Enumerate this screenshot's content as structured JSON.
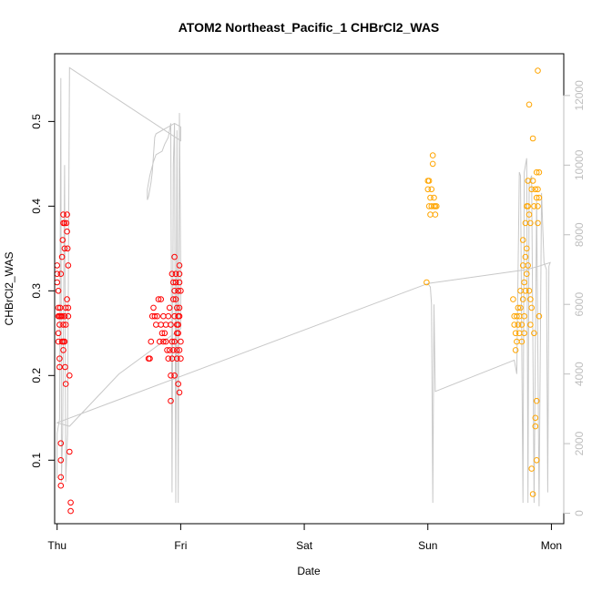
{
  "chart_data": {
    "type": "scatter",
    "title": "ATOM2 Northeast_Pacific_1 CHBrCl2_WAS",
    "xlabel": "Date",
    "ylabel": "CHBrCl2_WAS",
    "x_ticks": [
      "Thu",
      "Fri",
      "Sat",
      "Sun",
      "Mon"
    ],
    "x_range": [
      -0.02,
      4.1
    ],
    "ylim": [
      0.025,
      0.58
    ],
    "y_ticks": [
      0.1,
      0.2,
      0.3,
      0.4,
      0.5
    ],
    "y2_ticks": [
      0,
      2000,
      4000,
      6000,
      8000,
      10000,
      12000
    ],
    "y2_range": [
      -300,
      13200
    ],
    "grid": false,
    "legend": "none",
    "colors": {
      "red_series": "#ff0000",
      "orange_series": "#ffa500",
      "altitude_line": "#c8c8c8",
      "right_axis": "#bebebe"
    },
    "series": [
      {
        "color": "red",
        "points": [
          [
            0.0,
            0.33
          ],
          [
            0.0,
            0.32
          ],
          [
            0.0,
            0.31
          ],
          [
            0.01,
            0.3
          ],
          [
            0.01,
            0.28
          ],
          [
            0.01,
            0.27
          ],
          [
            0.01,
            0.25
          ],
          [
            0.01,
            0.24
          ],
          [
            0.02,
            0.22
          ],
          [
            0.02,
            0.21
          ],
          [
            0.02,
            0.27
          ],
          [
            0.02,
            0.26
          ],
          [
            0.025,
            0.28
          ],
          [
            0.03,
            0.12
          ],
          [
            0.03,
            0.1
          ],
          [
            0.03,
            0.08
          ],
          [
            0.03,
            0.07
          ],
          [
            0.03,
            0.27
          ],
          [
            0.03,
            0.32
          ],
          [
            0.04,
            0.24
          ],
          [
            0.04,
            0.27
          ],
          [
            0.04,
            0.34
          ],
          [
            0.045,
            0.36
          ],
          [
            0.05,
            0.38
          ],
          [
            0.05,
            0.39
          ],
          [
            0.05,
            0.24
          ],
          [
            0.05,
            0.23
          ],
          [
            0.05,
            0.26
          ],
          [
            0.06,
            0.38
          ],
          [
            0.06,
            0.35
          ],
          [
            0.06,
            0.27
          ],
          [
            0.06,
            0.24
          ],
          [
            0.065,
            0.21
          ],
          [
            0.07,
            0.26
          ],
          [
            0.07,
            0.19
          ],
          [
            0.07,
            0.28
          ],
          [
            0.075,
            0.38
          ],
          [
            0.08,
            0.39
          ],
          [
            0.08,
            0.29
          ],
          [
            0.08,
            0.37
          ],
          [
            0.085,
            0.35
          ],
          [
            0.09,
            0.33
          ],
          [
            0.09,
            0.28
          ],
          [
            0.09,
            0.27
          ],
          [
            0.1,
            0.2
          ],
          [
            0.1,
            0.11
          ],
          [
            0.11,
            0.05
          ],
          [
            0.11,
            0.04
          ],
          [
            0.74,
            0.22
          ],
          [
            0.75,
            0.22
          ],
          [
            0.76,
            0.24
          ],
          [
            0.77,
            0.27
          ],
          [
            0.78,
            0.28
          ],
          [
            0.79,
            0.27
          ],
          [
            0.8,
            0.26
          ],
          [
            0.81,
            0.27
          ],
          [
            0.82,
            0.29
          ],
          [
            0.83,
            0.24
          ],
          [
            0.84,
            0.29
          ],
          [
            0.84,
            0.26
          ],
          [
            0.85,
            0.25
          ],
          [
            0.86,
            0.27
          ],
          [
            0.86,
            0.24
          ],
          [
            0.87,
            0.25
          ],
          [
            0.88,
            0.26
          ],
          [
            0.88,
            0.24
          ],
          [
            0.89,
            0.23
          ],
          [
            0.9,
            0.27
          ],
          [
            0.9,
            0.22
          ],
          [
            0.91,
            0.28
          ],
          [
            0.91,
            0.23
          ],
          [
            0.92,
            0.26
          ],
          [
            0.92,
            0.17
          ],
          [
            0.92,
            0.2
          ],
          [
            0.93,
            0.32
          ],
          [
            0.93,
            0.24
          ],
          [
            0.93,
            0.22
          ],
          [
            0.94,
            0.31
          ],
          [
            0.94,
            0.29
          ],
          [
            0.94,
            0.23
          ],
          [
            0.95,
            0.34
          ],
          [
            0.95,
            0.3
          ],
          [
            0.95,
            0.27
          ],
          [
            0.95,
            0.24
          ],
          [
            0.95,
            0.2
          ],
          [
            0.96,
            0.32
          ],
          [
            0.96,
            0.31
          ],
          [
            0.96,
            0.29
          ],
          [
            0.97,
            0.28
          ],
          [
            0.97,
            0.26
          ],
          [
            0.97,
            0.25
          ],
          [
            0.97,
            0.23
          ],
          [
            0.97,
            0.22
          ],
          [
            0.98,
            0.3
          ],
          [
            0.98,
            0.27
          ],
          [
            0.98,
            0.26
          ],
          [
            0.98,
            0.25
          ],
          [
            0.98,
            0.19
          ],
          [
            0.99,
            0.33
          ],
          [
            0.99,
            0.32
          ],
          [
            0.99,
            0.31
          ],
          [
            0.99,
            0.28
          ],
          [
            0.99,
            0.27
          ],
          [
            0.99,
            0.23
          ],
          [
            0.99,
            0.18
          ],
          [
            1.0,
            0.3
          ],
          [
            1.0,
            0.24
          ],
          [
            1.0,
            0.22
          ]
        ]
      },
      {
        "color": "orange",
        "points": [
          [
            2.99,
            0.31
          ],
          [
            3.0,
            0.43
          ],
          [
            3.0,
            0.42
          ],
          [
            3.01,
            0.4
          ],
          [
            3.01,
            0.43
          ],
          [
            3.02,
            0.41
          ],
          [
            3.02,
            0.39
          ],
          [
            3.03,
            0.4
          ],
          [
            3.03,
            0.42
          ],
          [
            3.04,
            0.46
          ],
          [
            3.04,
            0.45
          ],
          [
            3.05,
            0.41
          ],
          [
            3.05,
            0.4
          ],
          [
            3.06,
            0.39
          ],
          [
            3.06,
            0.4
          ],
          [
            3.07,
            0.4
          ],
          [
            3.69,
            0.29
          ],
          [
            3.7,
            0.27
          ],
          [
            3.7,
            0.26
          ],
          [
            3.71,
            0.25
          ],
          [
            3.71,
            0.23
          ],
          [
            3.72,
            0.27
          ],
          [
            3.72,
            0.24
          ],
          [
            3.73,
            0.28
          ],
          [
            3.73,
            0.26
          ],
          [
            3.74,
            0.25
          ],
          [
            3.74,
            0.27
          ],
          [
            3.75,
            0.3
          ],
          [
            3.75,
            0.28
          ],
          [
            3.76,
            0.26
          ],
          [
            3.76,
            0.24
          ],
          [
            3.77,
            0.36
          ],
          [
            3.77,
            0.33
          ],
          [
            3.77,
            0.29
          ],
          [
            3.78,
            0.31
          ],
          [
            3.78,
            0.27
          ],
          [
            3.78,
            0.25
          ],
          [
            3.79,
            0.38
          ],
          [
            3.79,
            0.34
          ],
          [
            3.79,
            0.3
          ],
          [
            3.8,
            0.4
          ],
          [
            3.8,
            0.35
          ],
          [
            3.8,
            0.32
          ],
          [
            3.81,
            0.43
          ],
          [
            3.81,
            0.4
          ],
          [
            3.81,
            0.33
          ],
          [
            3.82,
            0.52
          ],
          [
            3.82,
            0.39
          ],
          [
            3.82,
            0.3
          ],
          [
            3.83,
            0.38
          ],
          [
            3.83,
            0.29
          ],
          [
            3.83,
            0.26
          ],
          [
            3.84,
            0.42
          ],
          [
            3.84,
            0.28
          ],
          [
            3.84,
            0.09
          ],
          [
            3.85,
            0.48
          ],
          [
            3.85,
            0.43
          ],
          [
            3.85,
            0.06
          ],
          [
            3.86,
            0.4
          ],
          [
            3.86,
            0.25
          ],
          [
            3.87,
            0.42
          ],
          [
            3.87,
            0.15
          ],
          [
            3.87,
            0.14
          ],
          [
            3.88,
            0.44
          ],
          [
            3.88,
            0.41
          ],
          [
            3.88,
            0.17
          ],
          [
            3.88,
            0.1
          ],
          [
            3.89,
            0.56
          ],
          [
            3.89,
            0.42
          ],
          [
            3.89,
            0.4
          ],
          [
            3.89,
            0.38
          ],
          [
            3.9,
            0.44
          ],
          [
            3.9,
            0.41
          ],
          [
            3.9,
            0.27
          ]
        ]
      }
    ],
    "altitude_line": [
      [
        0.0,
        1000
      ],
      [
        0.0,
        2300
      ],
      [
        0.02,
        2700
      ],
      [
        0.03,
        12500
      ],
      [
        0.035,
        900
      ],
      [
        0.045,
        2300
      ],
      [
        0.06,
        10000
      ],
      [
        0.07,
        900
      ],
      [
        0.085,
        2300
      ],
      [
        0.1,
        12800
      ],
      [
        1.0,
        10700
      ],
      [
        1.0,
        11100
      ],
      [
        0.95,
        11200
      ],
      [
        0.9,
        11100
      ],
      [
        0.8,
        10900
      ],
      [
        0.79,
        10800
      ],
      [
        0.77,
        9800
      ],
      [
        0.76,
        9500
      ],
      [
        0.74,
        9100
      ],
      [
        0.73,
        9000
      ],
      [
        0.73,
        9300
      ],
      [
        0.75,
        9700
      ],
      [
        0.78,
        10100
      ],
      [
        0.8,
        10300
      ],
      [
        0.85,
        10400
      ],
      [
        0.87,
        10600
      ],
      [
        0.9,
        10800
      ],
      [
        0.92,
        11200
      ],
      [
        0.93,
        600
      ],
      [
        0.94,
        10000
      ],
      [
        0.95,
        11200
      ],
      [
        0.96,
        300
      ],
      [
        0.97,
        11000
      ],
      [
        0.98,
        300
      ],
      [
        0.99,
        11500
      ],
      [
        1.0,
        7000
      ],
      [
        1.0,
        5300
      ],
      [
        0.5,
        4000
      ],
      [
        0.1,
        2500
      ],
      [
        0.0,
        2600
      ],
      [
        3.0,
        6600
      ],
      [
        3.02,
        6500
      ],
      [
        3.03,
        6000
      ],
      [
        3.04,
        300
      ],
      [
        3.05,
        6000
      ],
      [
        3.06,
        3500
      ],
      [
        3.7,
        4400
      ],
      [
        3.72,
        4000
      ],
      [
        3.74,
        9800
      ],
      [
        3.75,
        9700
      ],
      [
        3.77,
        300
      ],
      [
        3.78,
        9800
      ],
      [
        3.8,
        10200
      ],
      [
        3.81,
        300
      ],
      [
        3.82,
        9500
      ],
      [
        3.84,
        9700
      ],
      [
        3.86,
        300
      ],
      [
        3.88,
        9000
      ],
      [
        3.9,
        200
      ],
      [
        3.92,
        9200
      ],
      [
        3.94,
        7200
      ],
      [
        3.96,
        7000
      ],
      [
        3.97,
        600
      ],
      [
        3.98,
        7100
      ],
      [
        3.99,
        7200
      ],
      [
        3.9,
        7100
      ],
      [
        3.8,
        7000
      ],
      [
        3.0,
        6600
      ]
    ]
  }
}
